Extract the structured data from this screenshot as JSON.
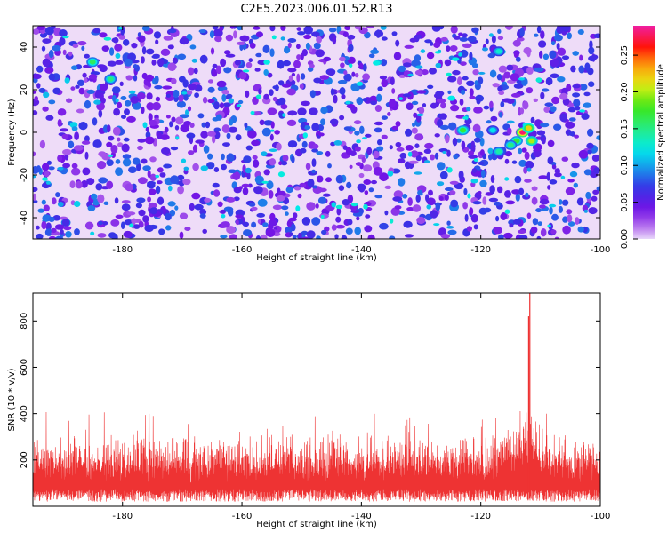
{
  "title": "C2E5.2023.006.01.52.R13",
  "chart_data": [
    {
      "type": "heatmap",
      "xlabel": "Height of straight line (km)",
      "ylabel": "Frequency (Hz)",
      "xlim": [
        -195,
        -100
      ],
      "ylim": [
        -50,
        50
      ],
      "xticks": [
        -180,
        -160,
        -140,
        -120,
        -100
      ],
      "yticks": [
        -40,
        -20,
        0,
        20,
        40
      ],
      "colorbar": {
        "label": "Normalized spectral amplitude",
        "range": [
          0.0,
          0.29
        ],
        "ticks": [
          "0.00",
          "0.05",
          "0.10",
          "0.15",
          "0.20",
          "0.25"
        ],
        "colormap": "gist_ncar (violet-blue-cyan-green-yellow-red-magenta)"
      },
      "background_amplitude": [
        0.02,
        0.09
      ],
      "hotspots": [
        {
          "x": -113.0,
          "y": 0,
          "value": 0.28
        },
        {
          "x": -112.0,
          "y": 2,
          "value": 0.22
        },
        {
          "x": -111.5,
          "y": -4,
          "value": 0.2
        },
        {
          "x": -114.0,
          "y": -4,
          "value": 0.17
        },
        {
          "x": -115.0,
          "y": -6,
          "value": 0.15
        },
        {
          "x": -123.0,
          "y": 1,
          "value": 0.17
        },
        {
          "x": -185.0,
          "y": 33,
          "value": 0.16
        },
        {
          "x": -182.0,
          "y": 25,
          "value": 0.15
        },
        {
          "x": -117.0,
          "y": -9,
          "value": 0.14
        },
        {
          "x": -117.0,
          "y": 38,
          "value": 0.13
        },
        {
          "x": -118.0,
          "y": 1,
          "value": 0.12
        }
      ],
      "grid": false,
      "legend": "colorbar right"
    },
    {
      "type": "line",
      "xlabel": "Height of straight line (km)",
      "ylabel": "SNR (10 * v/v)",
      "xlim": [
        -195,
        -100
      ],
      "ylim": [
        0,
        920
      ],
      "xticks": [
        -180,
        -160,
        -140,
        -120,
        -100
      ],
      "yticks": [
        200,
        400,
        600,
        800
      ],
      "color": "#ee3333",
      "noise_band": {
        "floor": [
          20,
          70
        ],
        "typical_peak": [
          180,
          320
        ],
        "max_peak": 430
      },
      "rise_region": {
        "x": [
          -118,
          -107
        ],
        "peak": 490
      },
      "main_peak": {
        "x": -111.8,
        "y": 920
      },
      "secondary_peak": {
        "x": -112.0,
        "y": 820
      },
      "grid": false
    }
  ]
}
